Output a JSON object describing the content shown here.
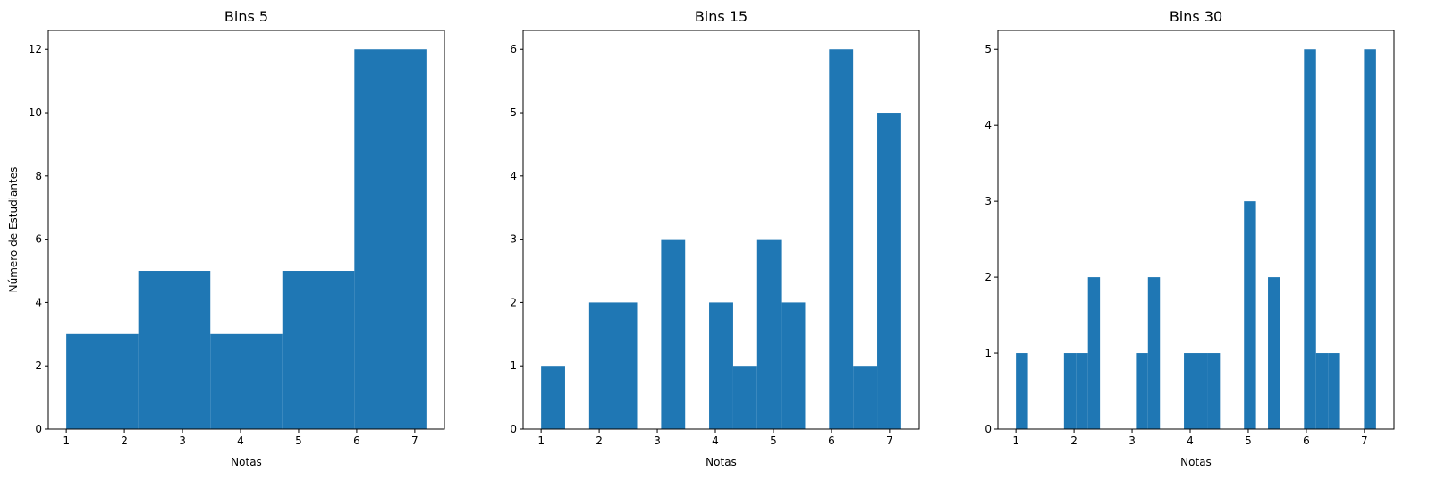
{
  "colors": {
    "bar": "#1f77b4",
    "axis": "#000000"
  },
  "chart_data": [
    {
      "type": "bar",
      "title": "Bins 5",
      "xlabel": "Notas",
      "ylabel": "Número de Estudiantes",
      "xlim": [
        0.69,
        7.51
      ],
      "ylim": [
        0,
        12.6
      ],
      "xticks": [
        1,
        2,
        3,
        4,
        5,
        6,
        7
      ],
      "yticks": [
        0,
        2,
        4,
        6,
        8,
        10,
        12
      ],
      "bins": [
        {
          "x0": 1.0,
          "x1": 2.24,
          "value": 3
        },
        {
          "x0": 2.24,
          "x1": 3.48,
          "value": 5
        },
        {
          "x0": 3.48,
          "x1": 4.72,
          "value": 3
        },
        {
          "x0": 4.72,
          "x1": 5.96,
          "value": 5
        },
        {
          "x0": 5.96,
          "x1": 7.2,
          "value": 12
        }
      ]
    },
    {
      "type": "bar",
      "title": "Bins 15",
      "xlabel": "Notas",
      "ylabel": "",
      "xlim": [
        0.69,
        7.51
      ],
      "ylim": [
        0,
        6.3
      ],
      "xticks": [
        1,
        2,
        3,
        4,
        5,
        6,
        7
      ],
      "yticks": [
        0,
        1,
        2,
        3,
        4,
        5,
        6
      ],
      "bins": [
        {
          "x0": 1.0,
          "x1": 1.413,
          "value": 1
        },
        {
          "x0": 1.413,
          "x1": 1.827,
          "value": 0
        },
        {
          "x0": 1.827,
          "x1": 2.24,
          "value": 2
        },
        {
          "x0": 2.24,
          "x1": 2.653,
          "value": 2
        },
        {
          "x0": 2.653,
          "x1": 3.067,
          "value": 0
        },
        {
          "x0": 3.067,
          "x1": 3.48,
          "value": 3
        },
        {
          "x0": 3.48,
          "x1": 3.893,
          "value": 0
        },
        {
          "x0": 3.893,
          "x1": 4.307,
          "value": 2
        },
        {
          "x0": 4.307,
          "x1": 4.72,
          "value": 1
        },
        {
          "x0": 4.72,
          "x1": 5.133,
          "value": 3
        },
        {
          "x0": 5.133,
          "x1": 5.547,
          "value": 2
        },
        {
          "x0": 5.547,
          "x1": 5.96,
          "value": 0
        },
        {
          "x0": 5.96,
          "x1": 6.373,
          "value": 6
        },
        {
          "x0": 6.373,
          "x1": 6.787,
          "value": 1
        },
        {
          "x0": 6.787,
          "x1": 7.2,
          "value": 5
        }
      ]
    },
    {
      "type": "bar",
      "title": "Bins 30",
      "xlabel": "Notas",
      "ylabel": "",
      "xlim": [
        0.69,
        7.51
      ],
      "ylim": [
        0,
        5.25
      ],
      "xticks": [
        1,
        2,
        3,
        4,
        5,
        6,
        7
      ],
      "yticks": [
        0,
        1,
        2,
        3,
        4,
        5
      ],
      "bins": [
        {
          "x0": 1.0,
          "x1": 1.207,
          "value": 1
        },
        {
          "x0": 1.827,
          "x1": 2.033,
          "value": 1
        },
        {
          "x0": 2.033,
          "x1": 2.24,
          "value": 1
        },
        {
          "x0": 2.24,
          "x1": 2.447,
          "value": 2
        },
        {
          "x0": 3.067,
          "x1": 3.273,
          "value": 1
        },
        {
          "x0": 3.273,
          "x1": 3.48,
          "value": 2
        },
        {
          "x0": 3.893,
          "x1": 4.1,
          "value": 1
        },
        {
          "x0": 4.1,
          "x1": 4.307,
          "value": 1
        },
        {
          "x0": 4.307,
          "x1": 4.513,
          "value": 1
        },
        {
          "x0": 4.927,
          "x1": 5.133,
          "value": 3
        },
        {
          "x0": 5.34,
          "x1": 5.547,
          "value": 2
        },
        {
          "x0": 5.96,
          "x1": 6.167,
          "value": 5
        },
        {
          "x0": 6.167,
          "x1": 6.373,
          "value": 1
        },
        {
          "x0": 6.373,
          "x1": 6.58,
          "value": 1
        },
        {
          "x0": 6.993,
          "x1": 7.2,
          "value": 5
        }
      ]
    }
  ]
}
